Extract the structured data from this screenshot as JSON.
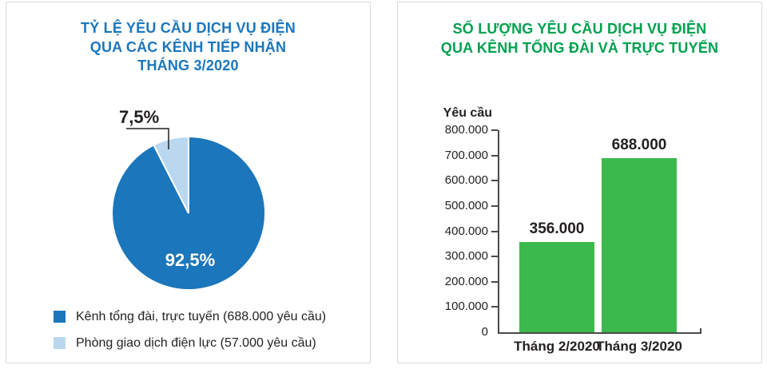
{
  "left_panel": {
    "title_lines": [
      "TỶ LỆ YÊU CẦU DỊCH VỤ ĐIỆN",
      "QUA CÁC KÊNH TIẾP NHẬN",
      "THÁNG 3/2020"
    ],
    "title_color": "#1b76bc",
    "pie_label_small": "7,5%",
    "pie_label_big": "92,5%",
    "legend": [
      {
        "label": "Kênh tổng đài, trực tuyến (688.000 yêu cầu)",
        "color": "#1b76bb"
      },
      {
        "label": "Phòng giao dịch điện lực (57.000 yêu cầu)",
        "color": "#b9d8f0"
      }
    ]
  },
  "right_panel": {
    "title_lines": [
      "SỐ LƯỢNG YÊU CẦU DỊCH VỤ ĐIỆN",
      "QUA KÊNH TỔNG ĐÀI VÀ TRỰC TUYẾN"
    ],
    "title_color": "#00a14f",
    "ylabel": "Yêu cầu"
  },
  "colors": {
    "pie_dark_blue": "#1b76bb",
    "pie_light_blue": "#b9d8f0",
    "bar_green": "#3cb94d",
    "axis": "#4a4a4a",
    "text": "#231f20"
  },
  "chart_data": [
    {
      "type": "pie",
      "title": "TỶ LỆ YÊU CẦU DỊCH VỤ ĐIỆN QUA CÁC KÊNH TIẾP NHẬN THÁNG 3/2020",
      "labels": [
        "Kênh tổng đài, trực tuyến",
        "Phòng giao dịch điện lực"
      ],
      "values": [
        92.5,
        7.5
      ],
      "slice_labels": [
        "92,5%",
        "7,5%"
      ],
      "colors": [
        "#1b76bb",
        "#b9d8f0"
      ],
      "legend": [
        "Kênh tổng đài, trực tuyến (688.000 yêu cầu)",
        "Phòng giao dịch điện lực (57.000 yêu cầu)"
      ],
      "legend_position": "bottom-left",
      "start_angle_deg_from_top": 0,
      "direction": "clockwise"
    },
    {
      "type": "bar",
      "title": "SỐ LƯỢNG YÊU CẦU DỊCH VỤ ĐIỆN QUA KÊNH TỔNG ĐÀI VÀ TRỰC TUYẾN",
      "ylabel": "Yêu cầu",
      "categories": [
        "Tháng 2/2020",
        "Tháng 3/2020"
      ],
      "values": [
        356000,
        688000
      ],
      "value_labels": [
        "356.000",
        "688.000"
      ],
      "ylim": [
        0,
        800000
      ],
      "ytick_labels": [
        "0",
        "100.000",
        "200.000",
        "300.000",
        "400.000",
        "500.000",
        "600.000",
        "700.000",
        "800.000"
      ],
      "bar_color": "#3cb94d",
      "grid": false,
      "legend_position": "none"
    }
  ]
}
